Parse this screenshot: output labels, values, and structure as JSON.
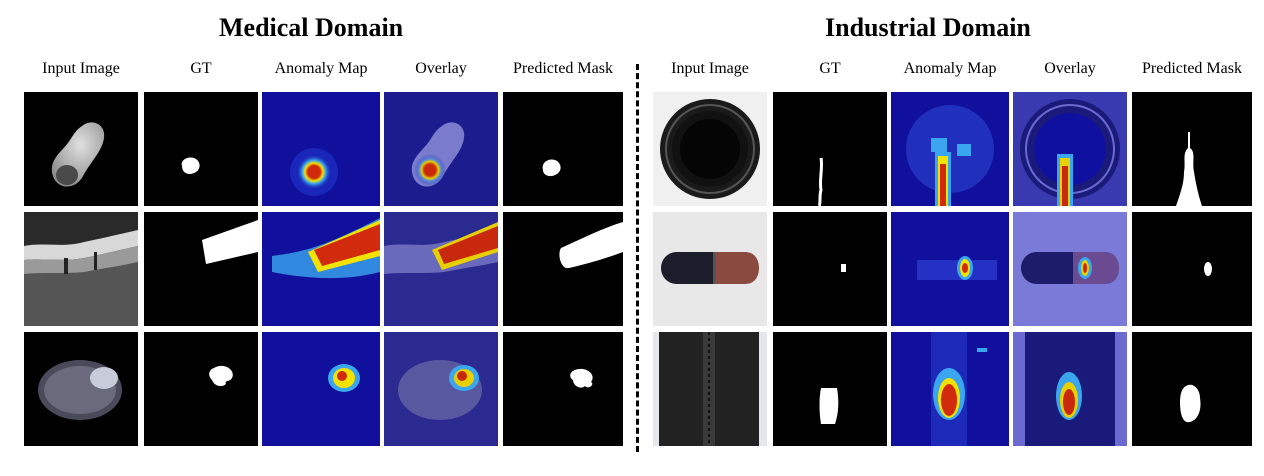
{
  "domains": [
    {
      "title": "Medical Domain"
    },
    {
      "title": "Industrial Domain"
    }
  ],
  "columns": [
    "Input Image",
    "GT",
    "Anomaly Map",
    "Overlay",
    "Predicted Mask"
  ],
  "colors": {
    "map_low": "#10109c",
    "map_high": "#d12a0c",
    "mask": "#ffffff",
    "background": "#000000"
  }
}
